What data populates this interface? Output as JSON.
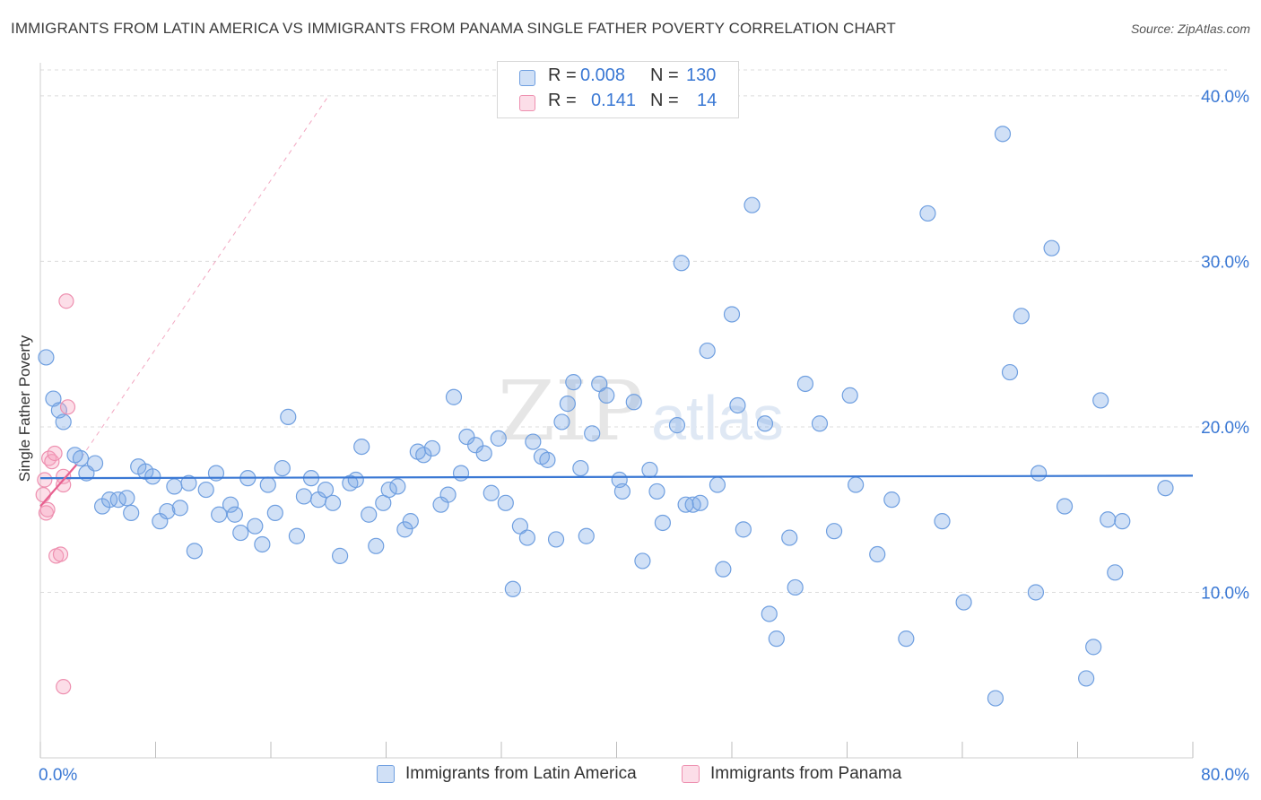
{
  "header": {
    "title": "IMMIGRANTS FROM LATIN AMERICA VS IMMIGRANTS FROM PANAMA SINGLE FATHER POVERTY CORRELATION CHART",
    "source": "Source: ZipAtlas.com"
  },
  "legend": {
    "r_label": "R =",
    "n_label": "N =",
    "rows": [
      {
        "r": "0.008",
        "n": "130"
      },
      {
        "r": "0.141",
        "n": "14"
      }
    ]
  },
  "watermark": {
    "zip": "ZIP",
    "atlas": "atlas"
  },
  "colors": {
    "series1_fill": "rgba(120,165,230,0.35)",
    "series1_stroke": "#6f9fe0",
    "series1_line": "#3a78d4",
    "series2_fill": "rgba(245,160,190,0.35)",
    "series2_stroke": "#ee90b0",
    "series2_line": "#e8608f",
    "axis_label": "#3a78d4",
    "grid": "#dcdcdc"
  },
  "chart_data": {
    "type": "scatter",
    "xlabel": "",
    "ylabel": "Single Father Poverty",
    "xlim": [
      0,
      80
    ],
    "ylim": [
      0,
      42
    ],
    "x_tick_labels": [
      "0.0%",
      "80.0%"
    ],
    "y_ticks": [
      10,
      20,
      30,
      40
    ],
    "y_tick_labels": [
      "10.0%",
      "20.0%",
      "30.0%",
      "40.0%"
    ],
    "grid": "horizontal dashed",
    "legend_position": "top-center and bottom",
    "series": [
      {
        "name": "Immigrants from Latin America",
        "color": "#6f9fe0",
        "trend": {
          "x": [
            0,
            80
          ],
          "y": [
            16.9,
            17.05
          ]
        },
        "points": [
          [
            0.4,
            24.2
          ],
          [
            0.9,
            21.7
          ],
          [
            1.3,
            21.0
          ],
          [
            1.6,
            20.3
          ],
          [
            2.4,
            18.3
          ],
          [
            2.8,
            18.1
          ],
          [
            3.2,
            17.2
          ],
          [
            3.8,
            17.8
          ],
          [
            4.3,
            15.2
          ],
          [
            4.8,
            15.6
          ],
          [
            5.4,
            15.6
          ],
          [
            6.0,
            15.7
          ],
          [
            6.3,
            14.8
          ],
          [
            6.8,
            17.6
          ],
          [
            7.3,
            17.3
          ],
          [
            7.8,
            17.0
          ],
          [
            8.3,
            14.3
          ],
          [
            8.8,
            14.9
          ],
          [
            9.3,
            16.4
          ],
          [
            9.7,
            15.1
          ],
          [
            10.3,
            16.6
          ],
          [
            10.7,
            12.5
          ],
          [
            11.5,
            16.2
          ],
          [
            12.2,
            17.2
          ],
          [
            12.4,
            14.7
          ],
          [
            13.2,
            15.3
          ],
          [
            13.5,
            14.7
          ],
          [
            13.9,
            13.6
          ],
          [
            14.4,
            16.9
          ],
          [
            14.9,
            14.0
          ],
          [
            15.4,
            12.9
          ],
          [
            15.8,
            16.5
          ],
          [
            16.3,
            14.8
          ],
          [
            16.8,
            17.5
          ],
          [
            17.2,
            20.6
          ],
          [
            17.8,
            13.4
          ],
          [
            18.3,
            15.8
          ],
          [
            18.8,
            16.9
          ],
          [
            19.3,
            15.6
          ],
          [
            19.8,
            16.2
          ],
          [
            20.3,
            15.4
          ],
          [
            20.8,
            12.2
          ],
          [
            21.5,
            16.6
          ],
          [
            21.9,
            16.8
          ],
          [
            22.3,
            18.8
          ],
          [
            22.8,
            14.7
          ],
          [
            23.3,
            12.8
          ],
          [
            23.8,
            15.4
          ],
          [
            24.2,
            16.2
          ],
          [
            24.8,
            16.4
          ],
          [
            25.3,
            13.8
          ],
          [
            25.7,
            14.3
          ],
          [
            26.2,
            18.5
          ],
          [
            26.6,
            18.3
          ],
          [
            27.2,
            18.7
          ],
          [
            27.8,
            15.3
          ],
          [
            28.3,
            15.9
          ],
          [
            28.7,
            21.8
          ],
          [
            29.2,
            17.2
          ],
          [
            29.6,
            19.4
          ],
          [
            30.2,
            18.9
          ],
          [
            30.8,
            18.4
          ],
          [
            31.3,
            16.0
          ],
          [
            31.8,
            19.3
          ],
          [
            32.3,
            15.4
          ],
          [
            32.8,
            10.2
          ],
          [
            33.3,
            14.0
          ],
          [
            33.8,
            13.3
          ],
          [
            34.2,
            19.1
          ],
          [
            34.8,
            18.2
          ],
          [
            35.2,
            18.0
          ],
          [
            35.8,
            13.2
          ],
          [
            36.2,
            20.3
          ],
          [
            36.6,
            21.4
          ],
          [
            37.0,
            22.7
          ],
          [
            37.5,
            17.5
          ],
          [
            37.9,
            13.4
          ],
          [
            38.3,
            19.6
          ],
          [
            38.8,
            22.6
          ],
          [
            39.3,
            21.9
          ],
          [
            40.2,
            16.8
          ],
          [
            40.4,
            16.1
          ],
          [
            41.2,
            21.5
          ],
          [
            41.8,
            11.9
          ],
          [
            42.3,
            17.4
          ],
          [
            42.8,
            16.1
          ],
          [
            43.2,
            14.2
          ],
          [
            44.2,
            20.1
          ],
          [
            44.5,
            29.9
          ],
          [
            44.8,
            15.3
          ],
          [
            45.3,
            15.3
          ],
          [
            45.8,
            15.4
          ],
          [
            46.3,
            24.6
          ],
          [
            47.0,
            16.5
          ],
          [
            47.4,
            11.4
          ],
          [
            48.0,
            26.8
          ],
          [
            48.4,
            21.3
          ],
          [
            48.8,
            13.8
          ],
          [
            49.4,
            33.4
          ],
          [
            50.3,
            20.2
          ],
          [
            50.6,
            8.7
          ],
          [
            51.1,
            7.2
          ],
          [
            52.0,
            13.3
          ],
          [
            52.4,
            10.3
          ],
          [
            53.1,
            22.6
          ],
          [
            54.1,
            20.2
          ],
          [
            55.1,
            13.7
          ],
          [
            56.2,
            21.9
          ],
          [
            56.6,
            16.5
          ],
          [
            58.1,
            12.3
          ],
          [
            59.1,
            15.6
          ],
          [
            60.1,
            7.2
          ],
          [
            61.6,
            32.9
          ],
          [
            62.6,
            14.3
          ],
          [
            64.1,
            9.4
          ],
          [
            66.3,
            3.6
          ],
          [
            66.8,
            37.7
          ],
          [
            67.3,
            23.3
          ],
          [
            68.1,
            26.7
          ],
          [
            69.1,
            10.0
          ],
          [
            69.3,
            17.2
          ],
          [
            70.2,
            30.8
          ],
          [
            71.1,
            15.2
          ],
          [
            72.6,
            4.8
          ],
          [
            73.1,
            6.7
          ],
          [
            73.6,
            21.6
          ],
          [
            74.1,
            14.4
          ],
          [
            74.6,
            11.2
          ],
          [
            75.1,
            14.3
          ],
          [
            78.1,
            16.3
          ]
        ]
      },
      {
        "name": "Immigrants from Panama",
        "color": "#ee90b0",
        "trend": {
          "x": [
            0,
            2.5
          ],
          "y": [
            15.2,
            17.7
          ],
          "extended_to": [
            20,
            40
          ]
        },
        "points": [
          [
            0.2,
            15.9
          ],
          [
            0.3,
            16.8
          ],
          [
            0.4,
            14.8
          ],
          [
            0.5,
            15.0
          ],
          [
            0.6,
            18.1
          ],
          [
            0.8,
            17.9
          ],
          [
            1.0,
            18.4
          ],
          [
            1.1,
            12.2
          ],
          [
            1.4,
            12.3
          ],
          [
            1.6,
            17.0
          ],
          [
            1.6,
            16.5
          ],
          [
            1.8,
            27.6
          ],
          [
            1.9,
            21.2
          ],
          [
            1.6,
            4.3
          ]
        ]
      }
    ]
  },
  "bottom_legend": [
    {
      "label": "Immigrants from Latin America"
    },
    {
      "label": "Immigrants from Panama"
    }
  ]
}
